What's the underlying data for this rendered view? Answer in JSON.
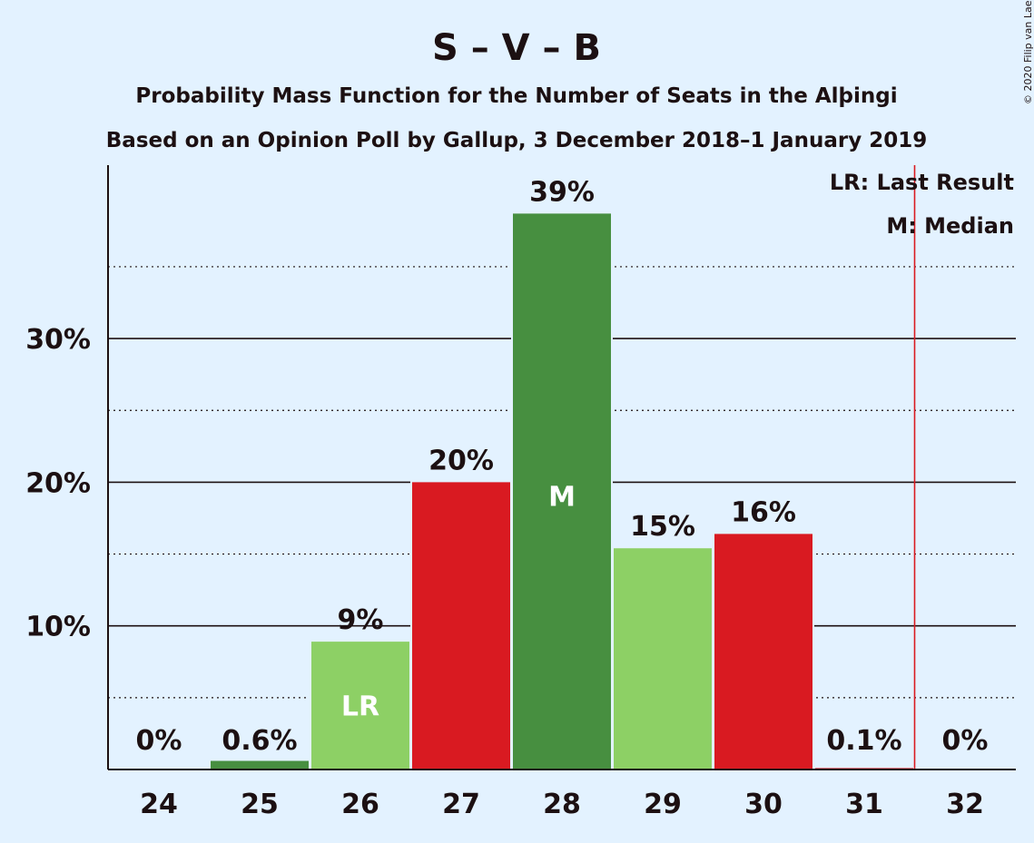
{
  "chart_data": {
    "type": "bar",
    "title": "S – V – B",
    "subtitle_1": "Probability Mass Function for the Number of Seats in the Alþingi",
    "subtitle_2": "Based on an Opinion Poll by Gallup, 3 December 2018–1 January 2019",
    "copyright": "© 2020 Filip van Laenen",
    "categories": [
      "24",
      "25",
      "26",
      "27",
      "28",
      "29",
      "30",
      "31",
      "32"
    ],
    "values": [
      0,
      0.6,
      8.9,
      20.0,
      38.7,
      15.4,
      16.4,
      0.1,
      0
    ],
    "value_labels": [
      "0%",
      "0.6%",
      "9%",
      "20%",
      "39%",
      "15%",
      "16%",
      "0.1%",
      "0%"
    ],
    "bar_colors": [
      "#478f40",
      "#478f40",
      "#8dd065",
      "#d91a21",
      "#478f40",
      "#8dd065",
      "#d91a21",
      "#d91a21",
      "#d91a21"
    ],
    "bar_markers": {
      "2": "LR",
      "4": "M"
    },
    "y_ticks": [
      {
        "value": 10,
        "label": "10%"
      },
      {
        "value": 20,
        "label": "20%"
      },
      {
        "value": 30,
        "label": "30%"
      }
    ],
    "y_minor_ticks": [
      5,
      15,
      25,
      35
    ],
    "ylim": [
      0,
      42
    ],
    "majority_line_after_category": "31",
    "legend": {
      "lr": "LR: Last Result",
      "m": "M: Median"
    },
    "colors": {
      "background": "#e3f2ff",
      "majority_line": "#d91a21",
      "text": "#1c1012"
    }
  }
}
